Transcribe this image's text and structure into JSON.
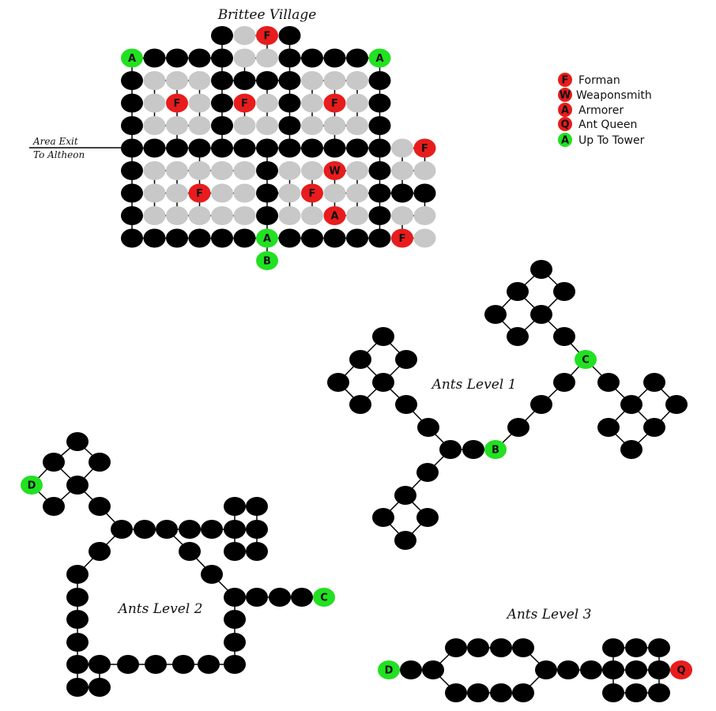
{
  "colors": {
    "room": "#000000",
    "inactive_room": "#c8c8c8",
    "npc": "#e81c1c",
    "portal": "#22e022",
    "edge": "#000000"
  },
  "maps": {
    "village": {
      "title": "Brittee Village"
    },
    "level1": {
      "title": "Ants Level 1"
    },
    "level2": {
      "title": "Ants Level 2"
    },
    "level3": {
      "title": "Ants Level 3"
    }
  },
  "area_exit": {
    "line1": "Area Exit",
    "line2": "To Altheon"
  },
  "markers": {
    "forman": "F",
    "weaponsmith": "W",
    "armorer": "A",
    "ant_queen": "Q",
    "tower": "A",
    "portal_b": "B",
    "portal_c": "C",
    "portal_d": "D"
  },
  "legend": [
    {
      "letter": "F",
      "label": "Forman",
      "kind": "npc"
    },
    {
      "letter": "W",
      "label": "Weaponsmith",
      "kind": "npc"
    },
    {
      "letter": "A",
      "label": "Armorer",
      "kind": "npc"
    },
    {
      "letter": "Q",
      "label": "Ant Queen",
      "kind": "npc"
    },
    {
      "letter": "A",
      "label": "Up To Tower",
      "kind": "portal"
    }
  ]
}
